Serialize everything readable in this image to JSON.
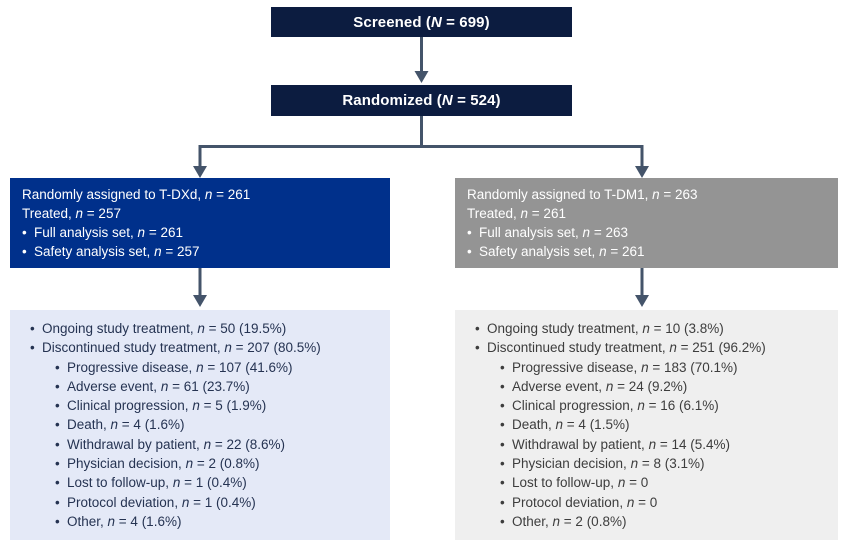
{
  "colors": {
    "navy": "#0c1c40",
    "arm_blue": "#00308b",
    "arm_gray": "#949494",
    "panel_blue": "#e4e9f7",
    "panel_gray": "#efefef",
    "panel_blue_text": "#253352",
    "panel_gray_text": "#3d3d3d",
    "arrow": "#44546a"
  },
  "flow": {
    "screened": {
      "text": "Screened (*N* = 699)"
    },
    "randomized": {
      "text": "Randomized (*N* = 524)"
    },
    "arms": [
      {
        "name": "T-DXd",
        "assignment": [
          {
            "bullet": false,
            "text": "Randomly assigned to T-DXd, *n* = 261"
          },
          {
            "bullet": false,
            "text": "Treated, *n* = 257"
          },
          {
            "bullet": true,
            "text": "Full analysis set, *n* = 261"
          },
          {
            "bullet": true,
            "text": "Safety analysis set, *n* = 257"
          }
        ],
        "disposition": [
          {
            "level": 1,
            "text": "Ongoing study treatment, *n* = 50 (19.5%)"
          },
          {
            "level": 1,
            "text": "Discontinued study treatment, *n* = 207 (80.5%)"
          },
          {
            "level": 2,
            "text": "Progressive disease, *n* = 107 (41.6%)"
          },
          {
            "level": 2,
            "text": "Adverse event, *n* = 61 (23.7%)"
          },
          {
            "level": 2,
            "text": "Clinical progression, *n* = 5 (1.9%)"
          },
          {
            "level": 2,
            "text": "Death, *n* = 4 (1.6%)"
          },
          {
            "level": 2,
            "text": "Withdrawal by patient, *n* = 22 (8.6%)"
          },
          {
            "level": 2,
            "text": "Physician decision, *n* = 2 (0.8%)"
          },
          {
            "level": 2,
            "text": "Lost to follow-up, *n* = 1 (0.4%)"
          },
          {
            "level": 2,
            "text": "Protocol deviation, *n* = 1 (0.4%)"
          },
          {
            "level": 2,
            "text": "Other, *n* = 4 (1.6%)"
          }
        ]
      },
      {
        "name": "T-DM1",
        "assignment": [
          {
            "bullet": false,
            "text": "Randomly assigned to T-DM1, *n* = 263"
          },
          {
            "bullet": false,
            "text": "Treated, *n* = 261"
          },
          {
            "bullet": true,
            "text": "Full analysis set, *n* = 263"
          },
          {
            "bullet": true,
            "text": "Safety analysis set, *n* = 261"
          }
        ],
        "disposition": [
          {
            "level": 1,
            "text": "Ongoing study treatment, *n* = 10 (3.8%)"
          },
          {
            "level": 1,
            "text": "Discontinued study treatment, *n* = 251 (96.2%)"
          },
          {
            "level": 2,
            "text": "Progressive disease, *n* = 183 (70.1%)"
          },
          {
            "level": 2,
            "text": "Adverse event, *n* = 24 (9.2%)"
          },
          {
            "level": 2,
            "text": "Clinical progression, *n* = 16 (6.1%)"
          },
          {
            "level": 2,
            "text": "Death, *n* = 4 (1.5%)"
          },
          {
            "level": 2,
            "text": "Withdrawal by patient, *n* = 14 (5.4%)"
          },
          {
            "level": 2,
            "text": "Physician decision, *n* = 8 (3.1%)"
          },
          {
            "level": 2,
            "text": "Lost to follow-up, *n* = 0"
          },
          {
            "level": 2,
            "text": "Protocol deviation, *n* = 0"
          },
          {
            "level": 2,
            "text": "Other, *n* = 2 (0.8%)"
          }
        ]
      }
    ]
  }
}
